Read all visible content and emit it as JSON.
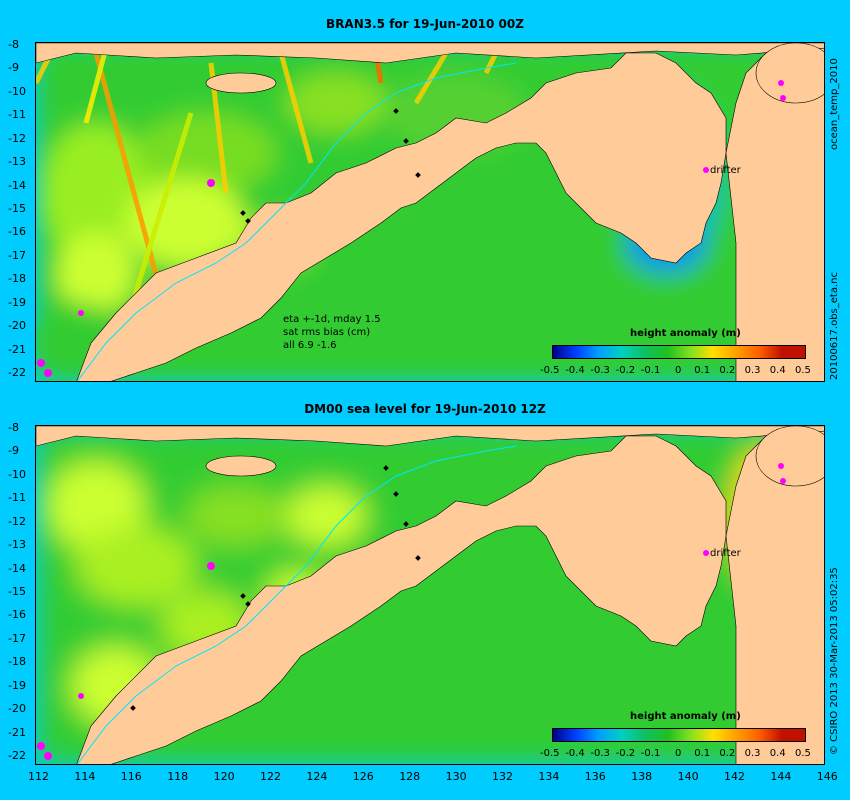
{
  "panels": [
    {
      "title": "BRAN3.5 for 19-Jun-2010 00Z",
      "side_label": "20100617.obs_eta.nc",
      "side_label_top": "ocean_temp_2010",
      "annotation": [
        "eta +-1d, mday 1.5",
        "sat rms bias (cm)",
        "all 6.9 -1.6"
      ],
      "drifter_label": "drifter",
      "colorbar_title": "height anomaly (m)"
    },
    {
      "title": "DM00 sea level  for 19-Jun-2010 12Z",
      "side_label": "© CSIRO 2013  30-Mar-2013 05:02:35",
      "drifter_label": "drifter",
      "colorbar_title": "height anomaly (m)"
    }
  ],
  "lat_ticks": [
    "-8",
    "-9",
    "-10",
    "-11",
    "-12",
    "-13",
    "-14",
    "-15",
    "-16",
    "-17",
    "-18",
    "-19",
    "-20",
    "-21",
    "-22"
  ],
  "lon_ticks": [
    "112",
    "114",
    "116",
    "118",
    "120",
    "122",
    "124",
    "126",
    "128",
    "130",
    "132",
    "134",
    "136",
    "138",
    "140",
    "142",
    "144",
    "146"
  ],
  "colorbar_ticks": [
    "-0.5",
    "-0.4",
    "-0.3",
    "-0.2",
    "-0.1",
    "0",
    "0.1",
    "0.2",
    "0.3",
    "0.4",
    "0.5"
  ],
  "colorbar_colors": [
    "#00008b",
    "#0040ff",
    "#00a0ff",
    "#00d0c0",
    "#10c060",
    "#20c020",
    "#80e020",
    "#ffe000",
    "#ffa000",
    "#ff6000",
    "#c01000"
  ],
  "colors": {
    "background": "#00ccff",
    "land": "#ffcc99",
    "ocean_mid": "#33cc33",
    "ocean_high": "#ccff33",
    "ocean_low": "#00ccaa"
  }
}
